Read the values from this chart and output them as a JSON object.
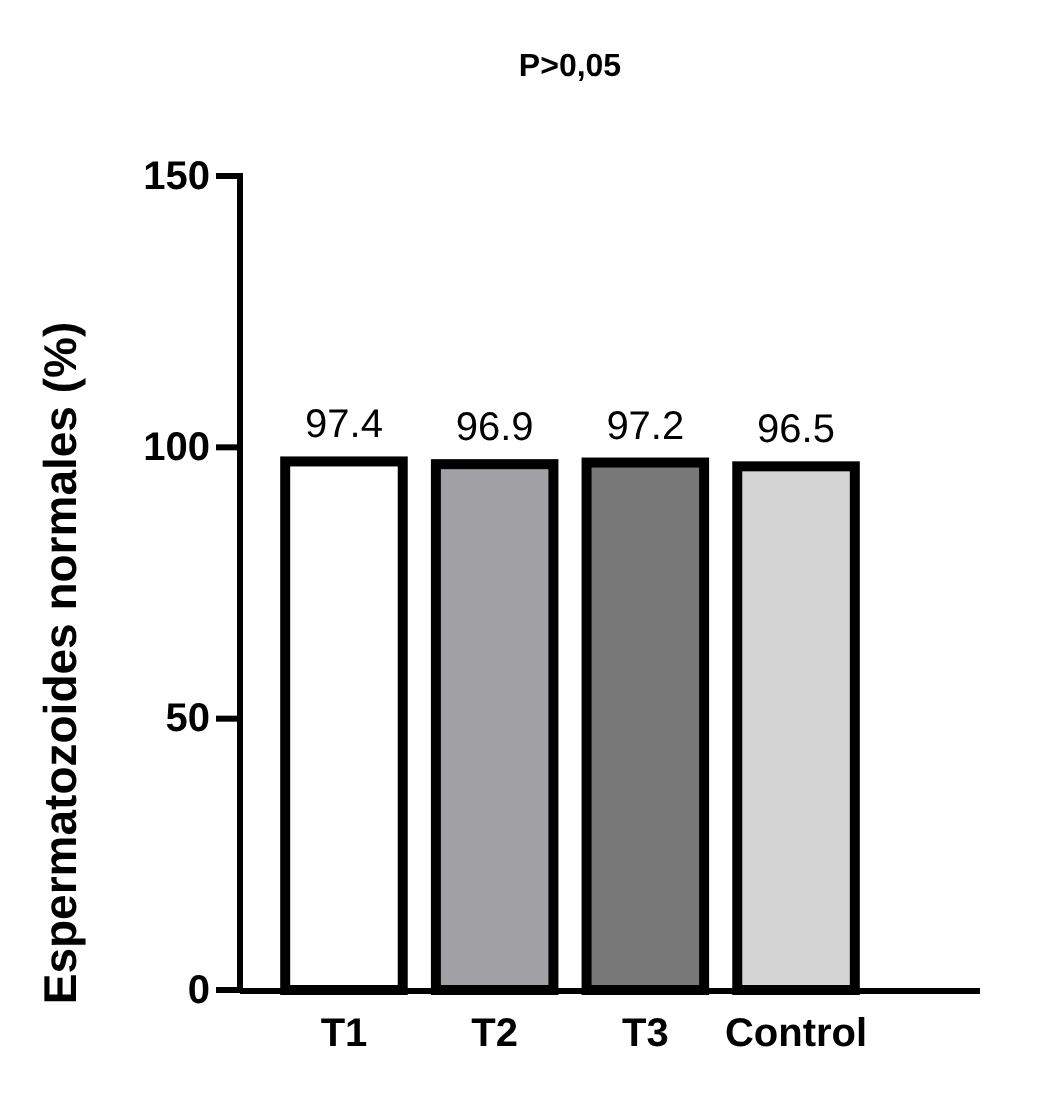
{
  "chart_data": {
    "type": "bar",
    "title": "P>0,05",
    "ylabel": "Espermatozoides normales (%)",
    "categories": [
      "T1",
      "T2",
      "T3",
      "Control"
    ],
    "values": [
      97.4,
      96.9,
      97.2,
      96.5
    ],
    "colors": [
      "#ffffff",
      "#a0a0a5",
      "#787878",
      "#d4d4d4"
    ],
    "ylim": [
      0,
      150
    ],
    "yticks": [
      0,
      50,
      100,
      150
    ],
    "data_labels": true,
    "grid": false
  }
}
